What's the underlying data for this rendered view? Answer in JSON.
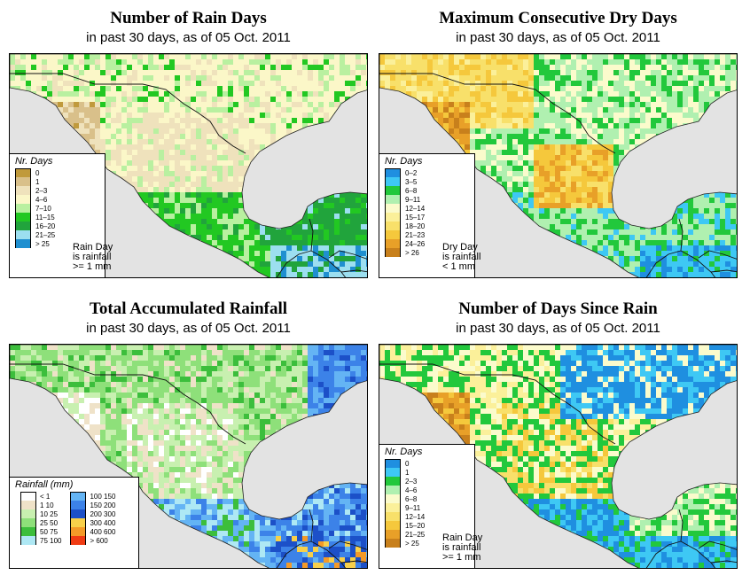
{
  "panels": [
    {
      "title": "Number of Rain Days",
      "subtitle": "in past 30 days, as of  05 Oct. 2011",
      "legend_title": "Nr. Days",
      "scheme": "rain",
      "legend": [
        {
          "label": "0",
          "color": "#c09a3c"
        },
        {
          "label": "1",
          "color": "#d9c08a"
        },
        {
          "label": "2–3",
          "color": "#efe2bc"
        },
        {
          "label": "4–6",
          "color": "#fbf7c8"
        },
        {
          "label": "7–10",
          "color": "#b9f0a0"
        },
        {
          "label": "11–15",
          "color": "#22c822"
        },
        {
          "label": "16–20",
          "color": "#21a43c"
        },
        {
          "label": "21–25",
          "color": "#9cdff0"
        },
        {
          "label": "> 25",
          "color": "#1f8fd0"
        }
      ],
      "note": [
        "Rain Day",
        "is rainfall",
        ">= 1 mm"
      ]
    },
    {
      "title": "Maximum Consecutive Dry Days",
      "subtitle": "in past 30 days, as of  05 Oct. 2011",
      "legend_title": "Nr. Days",
      "scheme": "dry",
      "legend": [
        {
          "label": "0–2",
          "color": "#1f8fe0"
        },
        {
          "label": "3–5",
          "color": "#3ec8f4"
        },
        {
          "label": "6–8",
          "color": "#22c83c"
        },
        {
          "label": "9–11",
          "color": "#b0f0b0"
        },
        {
          "label": "12–14",
          "color": "#fbfbcc"
        },
        {
          "label": "15–17",
          "color": "#fbf09a"
        },
        {
          "label": "18–20",
          "color": "#f8e06a"
        },
        {
          "label": "21–23",
          "color": "#f5c83c"
        },
        {
          "label": "24–26",
          "color": "#e8a028"
        },
        {
          "label": "> 26",
          "color": "#c8801c"
        }
      ],
      "note": [
        "Dry Day",
        "is rainfall",
        "< 1 mm"
      ]
    },
    {
      "title": "Total Accumulated Rainfall",
      "subtitle": "in past 30 days, as of  05 Oct. 2011",
      "legend_title": "Rainfall (mm)",
      "scheme": "total",
      "legend_left": [
        {
          "label": "< 1",
          "color": "#ffffff"
        },
        {
          "label": "1    10",
          "color": "#efe2c8"
        },
        {
          "label": "10    25",
          "color": "#c8f0b0"
        },
        {
          "label": "25    50",
          "color": "#8ee07a"
        },
        {
          "label": "50    75",
          "color": "#3cbe3c"
        },
        {
          "label": "75   100",
          "color": "#aee8f4"
        }
      ],
      "legend_right": [
        {
          "label": "100   150",
          "color": "#64b4f4"
        },
        {
          "label": "150   200",
          "color": "#3c82e8"
        },
        {
          "label": "200   300",
          "color": "#1c50c8"
        },
        {
          "label": "300   400",
          "color": "#f8d04a"
        },
        {
          "label": "400   600",
          "color": "#f49a28"
        },
        {
          "label": "> 600",
          "color": "#f03c14"
        }
      ],
      "note": []
    },
    {
      "title": "Number of Days Since Rain",
      "subtitle": "in past 30 days, as of  05 Oct. 2011",
      "legend_title": "Nr. Days",
      "scheme": "since",
      "legend": [
        {
          "label": "0",
          "color": "#1f8fe0"
        },
        {
          "label": "1",
          "color": "#3ec8f4"
        },
        {
          "label": "2–3",
          "color": "#22c83c"
        },
        {
          "label": "4–6",
          "color": "#b0f0b0"
        },
        {
          "label": "6–8",
          "color": "#fbfbcc"
        },
        {
          "label": "9–11",
          "color": "#fbf09a"
        },
        {
          "label": "12–14",
          "color": "#f8e06a"
        },
        {
          "label": "15–20",
          "color": "#f5c83c"
        },
        {
          "label": "21–25",
          "color": "#e8a028"
        },
        {
          "label": "> 25",
          "color": "#c8801c"
        }
      ],
      "note": [
        "Rain Day",
        "is rainfall",
        ">= 1 mm"
      ]
    }
  ]
}
